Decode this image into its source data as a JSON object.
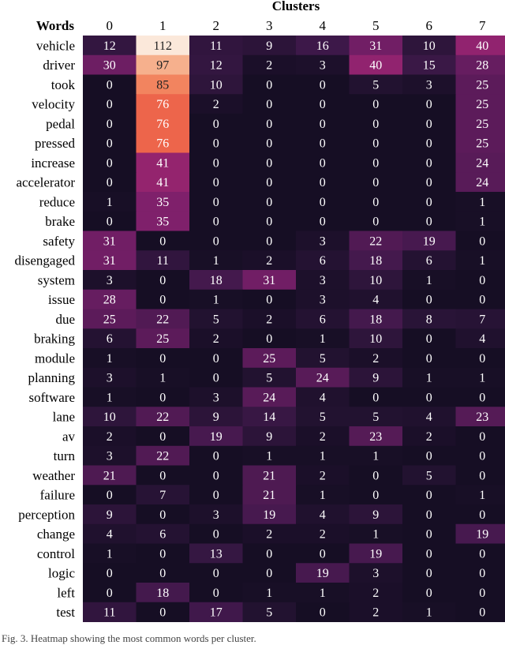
{
  "chart_data": {
    "type": "heatmap",
    "title": "Clusters",
    "row_header": "Words",
    "columns": [
      "0",
      "1",
      "2",
      "3",
      "4",
      "5",
      "6",
      "7"
    ],
    "rows": [
      "vehicle",
      "driver",
      "took",
      "velocity",
      "pedal",
      "pressed",
      "increase",
      "accelerator",
      "reduce",
      "brake",
      "safety",
      "disengaged",
      "system",
      "issue",
      "due",
      "braking",
      "module",
      "planning",
      "software",
      "lane",
      "av",
      "turn",
      "weather",
      "failure",
      "perception",
      "change",
      "control",
      "logic",
      "left",
      "test"
    ],
    "values": [
      [
        12,
        112,
        11,
        9,
        16,
        31,
        10,
        40
      ],
      [
        30,
        97,
        12,
        2,
        3,
        40,
        15,
        28
      ],
      [
        0,
        85,
        10,
        0,
        0,
        5,
        3,
        25
      ],
      [
        0,
        76,
        2,
        0,
        0,
        0,
        0,
        25
      ],
      [
        0,
        76,
        0,
        0,
        0,
        0,
        0,
        25
      ],
      [
        0,
        76,
        0,
        0,
        0,
        0,
        0,
        25
      ],
      [
        0,
        41,
        0,
        0,
        0,
        0,
        0,
        24
      ],
      [
        0,
        41,
        0,
        0,
        0,
        0,
        0,
        24
      ],
      [
        1,
        35,
        0,
        0,
        0,
        0,
        0,
        1
      ],
      [
        0,
        35,
        0,
        0,
        0,
        0,
        0,
        1
      ],
      [
        31,
        0,
        0,
        0,
        3,
        22,
        19,
        0
      ],
      [
        31,
        11,
        1,
        2,
        6,
        18,
        6,
        1
      ],
      [
        3,
        0,
        18,
        31,
        3,
        10,
        1,
        0
      ],
      [
        28,
        0,
        1,
        0,
        3,
        4,
        0,
        0
      ],
      [
        25,
        22,
        5,
        2,
        6,
        18,
        8,
        7
      ],
      [
        6,
        25,
        2,
        0,
        1,
        10,
        0,
        4
      ],
      [
        1,
        0,
        0,
        25,
        5,
        2,
        0,
        0
      ],
      [
        3,
        1,
        0,
        5,
        24,
        9,
        1,
        1
      ],
      [
        1,
        0,
        3,
        24,
        4,
        0,
        0,
        0
      ],
      [
        10,
        22,
        9,
        14,
        5,
        5,
        4,
        23
      ],
      [
        2,
        0,
        19,
        9,
        2,
        23,
        2,
        0
      ],
      [
        3,
        22,
        0,
        1,
        1,
        1,
        0,
        0
      ],
      [
        21,
        0,
        0,
        21,
        2,
        0,
        5,
        0
      ],
      [
        0,
        7,
        0,
        21,
        1,
        0,
        0,
        1
      ],
      [
        9,
        0,
        3,
        19,
        4,
        9,
        0,
        0
      ],
      [
        4,
        6,
        0,
        2,
        2,
        1,
        0,
        19
      ],
      [
        1,
        0,
        13,
        0,
        0,
        19,
        0,
        0
      ],
      [
        0,
        0,
        0,
        0,
        19,
        3,
        0,
        0
      ],
      [
        0,
        18,
        0,
        1,
        1,
        2,
        0,
        0
      ],
      [
        11,
        0,
        17,
        5,
        0,
        2,
        1,
        0
      ]
    ],
    "value_range": [
      0,
      112
    ],
    "colormap": "rocket",
    "colors": {
      "low": "#160e24",
      "mid": "#8a2270",
      "high": "#fbe8da"
    }
  },
  "caption": "Fig. 3.   Heatmap showing the most common words per cluster."
}
